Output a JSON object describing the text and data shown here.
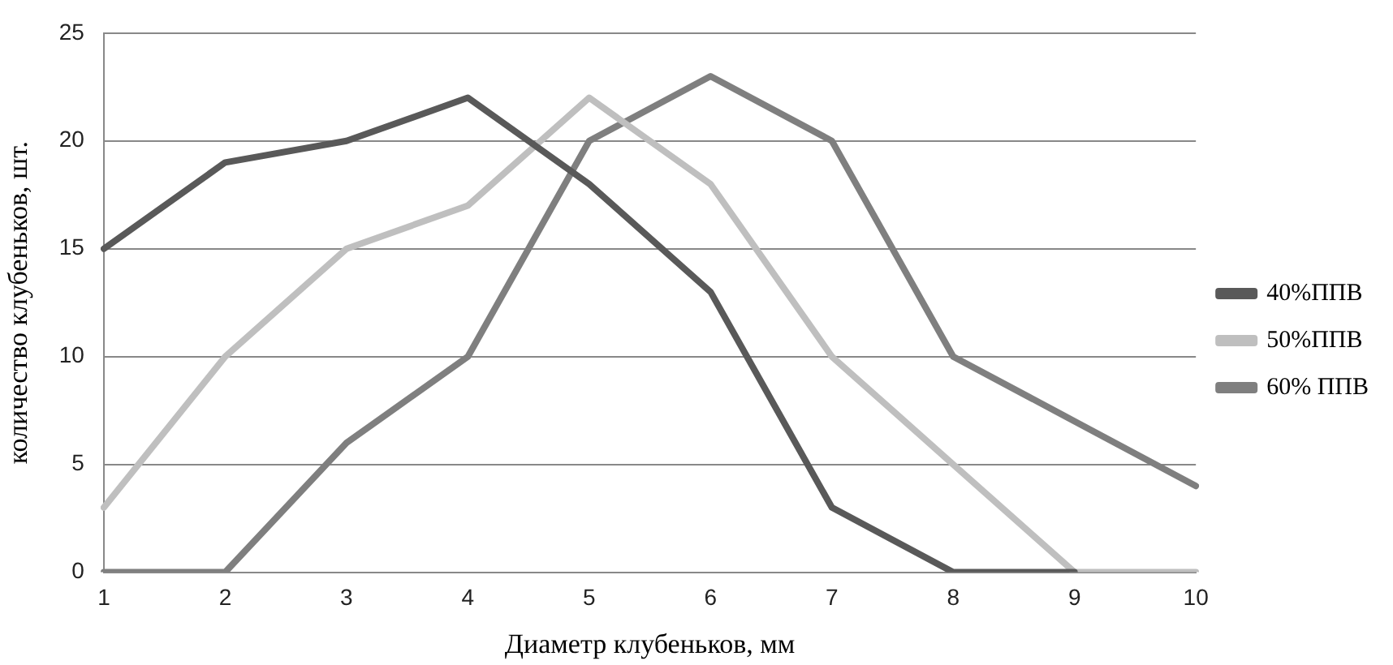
{
  "chart_data": {
    "type": "line",
    "xlabel": "Диаметр клубеньков, мм",
    "ylabel": "количество клубеньков, шт.",
    "categories": [
      "1",
      "2",
      "3",
      "4",
      "5",
      "6",
      "7",
      "8",
      "9",
      "10"
    ],
    "series": [
      {
        "name": "40%ППВ",
        "color": "#595959",
        "values": [
          15,
          19,
          20,
          22,
          18,
          13,
          3,
          0,
          0,
          null
        ]
      },
      {
        "name": "50%ППВ",
        "color": "#bfbfbf",
        "values": [
          3,
          10,
          15,
          17,
          22,
          18,
          10,
          5,
          0,
          0
        ]
      },
      {
        "name": "60% ППВ",
        "color": "#7f7f7f",
        "values": [
          0,
          0,
          6,
          10,
          20,
          23,
          20,
          10,
          7,
          4
        ]
      }
    ],
    "ylim": [
      0,
      25
    ],
    "yticks": [
      0,
      5,
      10,
      15,
      20,
      25
    ],
    "grid": "y",
    "legend": "right",
    "marker": "none",
    "line_style": "solid"
  }
}
